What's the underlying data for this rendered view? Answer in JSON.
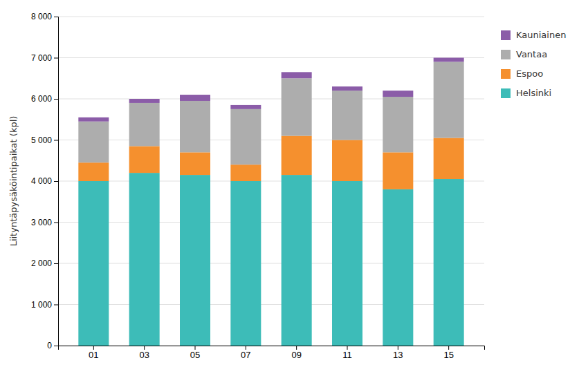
{
  "chart_data": {
    "type": "bar",
    "stacked": true,
    "categories": [
      "01",
      "03",
      "05",
      "07",
      "09",
      "11",
      "13",
      "15"
    ],
    "series": [
      {
        "name": "Helsinki",
        "color": "#3dbcb8",
        "values": [
          4000,
          4200,
          4150,
          4000,
          4150,
          4000,
          3800,
          4050
        ]
      },
      {
        "name": "Espoo",
        "color": "#f5902e",
        "values": [
          450,
          650,
          550,
          400,
          950,
          1000,
          900,
          1000
        ]
      },
      {
        "name": "Vantaa",
        "color": "#adadad",
        "values": [
          1000,
          1050,
          1250,
          1350,
          1400,
          1200,
          1350,
          1850
        ]
      },
      {
        "name": "Kauniainen",
        "color": "#8b5ca8",
        "values": [
          100,
          100,
          150,
          100,
          150,
          100,
          150,
          100
        ]
      }
    ],
    "ylabel": "Liityntäpysäköintipaikat (kpl)",
    "ylim": [
      0,
      8000
    ],
    "yticks": [
      0,
      {
        "value": 1000,
        "label": "1 000"
      },
      {
        "value": 2000,
        "label": "2 000"
      },
      {
        "value": 3000,
        "label": "3 000"
      },
      {
        "value": 4000,
        "label": "4 000"
      },
      {
        "value": 5000,
        "label": "5 000"
      },
      {
        "value": 6000,
        "label": "6 000"
      },
      {
        "value": 7000,
        "label": "7 000"
      },
      {
        "value": 8000,
        "label": "8 000"
      }
    ],
    "grid": true,
    "legend": "right"
  }
}
